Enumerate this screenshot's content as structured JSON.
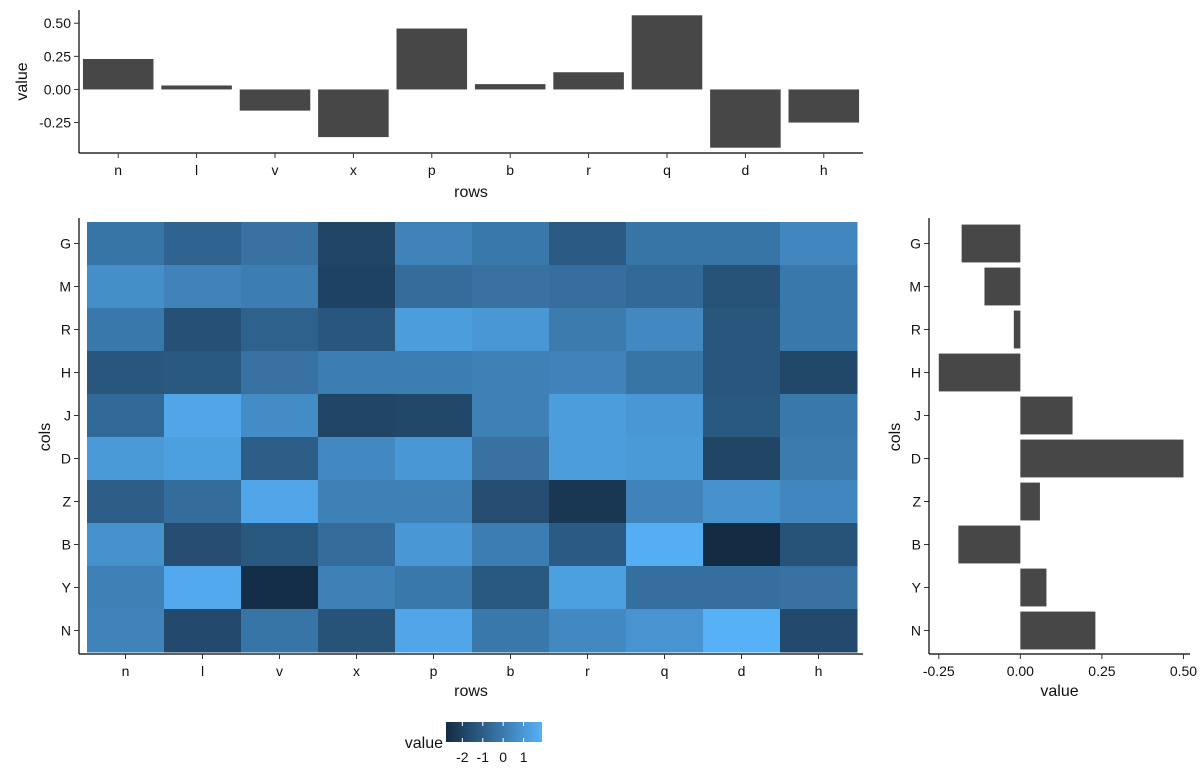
{
  "chart_data": [
    {
      "id": "top",
      "type": "bar",
      "orientation": "vertical",
      "categories": [
        "n",
        "l",
        "v",
        "x",
        "p",
        "b",
        "r",
        "q",
        "d",
        "h"
      ],
      "values": [
        0.23,
        0.03,
        -0.16,
        -0.36,
        0.46,
        0.04,
        0.13,
        0.56,
        -0.44,
        -0.25
      ],
      "xlabel": "rows",
      "ylabel": "value",
      "ylim": [
        -0.48,
        0.6
      ],
      "yticks": [
        -0.25,
        0.0,
        0.25,
        0.5
      ],
      "ytick_labels": [
        "-0.25",
        "0.00",
        "0.25",
        "0.50"
      ],
      "bar_color": "#474747"
    },
    {
      "id": "heat",
      "type": "heatmap",
      "x": [
        "n",
        "l",
        "v",
        "x",
        "p",
        "b",
        "r",
        "q",
        "d",
        "h"
      ],
      "y": [
        "G",
        "M",
        "R",
        "H",
        "J",
        "D",
        "Z",
        "B",
        "Y",
        "N"
      ],
      "z": [
        [
          -0.2,
          -0.8,
          -0.3,
          -1.9,
          0.3,
          -0.1,
          -1.1,
          -0.2,
          -0.2,
          0.4
        ],
        [
          0.7,
          0.3,
          0.1,
          -2.0,
          -0.5,
          -0.3,
          -0.4,
          -0.6,
          -1.4,
          -0.1
        ],
        [
          -0.1,
          -1.5,
          -0.9,
          -1.3,
          1.2,
          1.0,
          0.0,
          0.5,
          -1.3,
          -0.1
        ],
        [
          -1.3,
          -1.2,
          -0.3,
          0.1,
          0.1,
          0.2,
          0.3,
          -0.2,
          -1.3,
          -1.8
        ],
        [
          -0.6,
          1.5,
          0.6,
          -1.9,
          -1.8,
          0.2,
          1.2,
          1.0,
          -1.2,
          -0.1
        ],
        [
          1.1,
          1.3,
          -1.0,
          0.5,
          1.0,
          -0.3,
          1.2,
          1.1,
          -1.9,
          0.0
        ],
        [
          -1.0,
          -0.5,
          1.5,
          0.2,
          0.2,
          -1.6,
          -2.4,
          0.3,
          0.8,
          0.4
        ],
        [
          0.8,
          -1.6,
          -1.2,
          -0.5,
          1.0,
          0.1,
          -1.1,
          1.8,
          -2.8,
          -1.4
        ],
        [
          0.2,
          1.6,
          -2.7,
          0.2,
          -0.1,
          -1.2,
          1.3,
          -0.4,
          -0.4,
          -0.3
        ],
        [
          0.3,
          -1.7,
          -0.2,
          -1.4,
          1.5,
          -0.1,
          0.5,
          0.9,
          1.9,
          -1.7
        ]
      ],
      "xlabel": "rows",
      "ylabel": "cols",
      "color_low": "#132B43",
      "color_high": "#56B1F7",
      "zlim": [
        -2.8,
        1.9
      ]
    },
    {
      "id": "right",
      "type": "bar",
      "orientation": "horizontal",
      "categories": [
        "G",
        "M",
        "R",
        "H",
        "J",
        "D",
        "Z",
        "B",
        "Y",
        "N"
      ],
      "values": [
        -0.18,
        -0.11,
        -0.02,
        -0.25,
        0.16,
        0.5,
        0.06,
        -0.19,
        0.08,
        0.23
      ],
      "xlabel": "value",
      "ylabel": "cols",
      "xlim": [
        -0.28,
        0.52
      ],
      "xticks": [
        -0.25,
        0.0,
        0.25,
        0.5
      ],
      "xtick_labels": [
        "-0.25",
        "0.00",
        "0.25",
        "0.50"
      ],
      "bar_color": "#474747"
    }
  ],
  "legend": {
    "title": "value",
    "ticks": [
      -2,
      -1,
      0,
      1
    ],
    "tick_labels": [
      "-2",
      "-1",
      "0",
      "1"
    ],
    "range": [
      -2.8,
      1.9
    ]
  }
}
